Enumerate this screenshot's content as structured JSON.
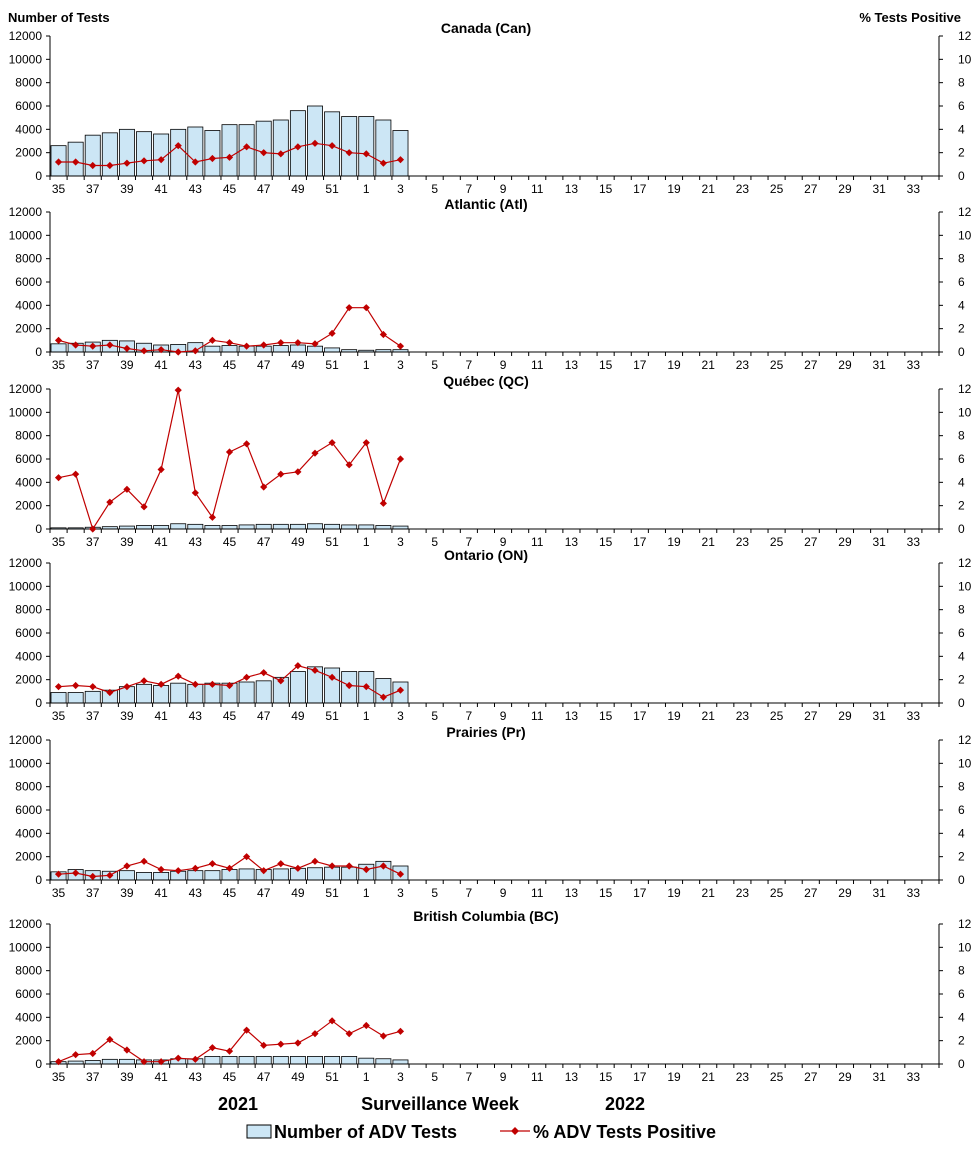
{
  "labels": {
    "left_axis_title": "Number of Tests",
    "right_axis_title": "%  Tests Positive",
    "year_left": "2021",
    "x_axis_title": "Surveillance Week",
    "year_right": "2022",
    "legend_bars": "Number of ADV Tests",
    "legend_line": "% ADV Tests Positive"
  },
  "colors": {
    "bar_fill": "#cce6f5",
    "bar_stroke": "#000000",
    "line": "#c00000",
    "marker": "#c00000"
  },
  "chart_data": [
    {
      "type": "bar",
      "title": "Canada (Can)",
      "week_ticks": [
        "35",
        "37",
        "39",
        "41",
        "43",
        "45",
        "47",
        "49",
        "51",
        "1",
        "3",
        "5",
        "7",
        "9",
        "11",
        "13",
        "15",
        "17",
        "19",
        "21",
        "23",
        "25",
        "27",
        "29",
        "31",
        "33"
      ],
      "weeks": [
        "35",
        "36",
        "37",
        "38",
        "39",
        "40",
        "41",
        "42",
        "43",
        "44",
        "45",
        "46",
        "47",
        "48",
        "49",
        "50",
        "51",
        "52",
        "1",
        "2",
        "3"
      ],
      "ylim_left": [
        0,
        12000
      ],
      "yticks_left": [
        0,
        2000,
        4000,
        6000,
        8000,
        10000,
        12000
      ],
      "ylim_right": [
        0,
        12
      ],
      "yticks_right": [
        0,
        2,
        4,
        6,
        8,
        10,
        12
      ],
      "series": [
        {
          "name": "Number of ADV Tests",
          "kind": "bar",
          "axis": "left",
          "values": [
            2600,
            2900,
            3500,
            3700,
            4000,
            3800,
            3600,
            4000,
            4200,
            3900,
            4400,
            4400,
            4700,
            4800,
            5600,
            6000,
            5500,
            5100,
            5100,
            4800,
            3900
          ]
        },
        {
          "name": "% ADV Tests Positive",
          "kind": "line",
          "axis": "right",
          "values": [
            1.2,
            1.2,
            0.9,
            0.9,
            1.1,
            1.3,
            1.4,
            2.6,
            1.2,
            1.5,
            1.6,
            2.5,
            2.0,
            1.9,
            2.5,
            2.8,
            2.6,
            2.0,
            1.9,
            1.1,
            1.4
          ]
        }
      ]
    },
    {
      "type": "bar",
      "title": "Atlantic (Atl)",
      "week_ticks": [
        "35",
        "37",
        "39",
        "41",
        "43",
        "45",
        "47",
        "49",
        "51",
        "1",
        "3",
        "5",
        "7",
        "9",
        "11",
        "13",
        "15",
        "17",
        "19",
        "21",
        "23",
        "25",
        "27",
        "29",
        "31",
        "33"
      ],
      "weeks": [
        "35",
        "36",
        "37",
        "38",
        "39",
        "40",
        "41",
        "42",
        "43",
        "44",
        "45",
        "46",
        "47",
        "48",
        "49",
        "50",
        "51",
        "52",
        "1",
        "2",
        "3"
      ],
      "ylim_left": [
        0,
        12000
      ],
      "yticks_left": [
        0,
        2000,
        4000,
        6000,
        8000,
        10000,
        12000
      ],
      "ylim_right": [
        0,
        12
      ],
      "yticks_right": [
        0,
        2,
        4,
        6,
        8,
        10,
        12
      ],
      "series": [
        {
          "name": "Number of ADV Tests",
          "kind": "bar",
          "axis": "left",
          "values": [
            700,
            750,
            850,
            1000,
            950,
            750,
            600,
            650,
            800,
            500,
            550,
            500,
            500,
            550,
            600,
            500,
            350,
            200,
            150,
            200,
            200
          ]
        },
        {
          "name": "% ADV Tests Positive",
          "kind": "line",
          "axis": "right",
          "values": [
            1.0,
            0.6,
            0.5,
            0.6,
            0.3,
            0.1,
            0.2,
            0.0,
            0.1,
            1.0,
            0.8,
            0.5,
            0.6,
            0.8,
            0.8,
            0.7,
            1.6,
            3.8,
            3.8,
            1.5,
            0.5
          ]
        }
      ]
    },
    {
      "type": "bar",
      "title": "Québec (QC)",
      "week_ticks": [
        "35",
        "37",
        "39",
        "41",
        "43",
        "45",
        "47",
        "49",
        "51",
        "1",
        "3",
        "5",
        "7",
        "9",
        "11",
        "13",
        "15",
        "17",
        "19",
        "21",
        "23",
        "25",
        "27",
        "29",
        "31",
        "33"
      ],
      "weeks": [
        "35",
        "36",
        "37",
        "38",
        "39",
        "40",
        "41",
        "42",
        "43",
        "44",
        "45",
        "46",
        "47",
        "48",
        "49",
        "50",
        "51",
        "52",
        "1",
        "2",
        "3"
      ],
      "ylim_left": [
        0,
        12000
      ],
      "yticks_left": [
        0,
        2000,
        4000,
        6000,
        8000,
        10000,
        12000
      ],
      "ylim_right": [
        0,
        12
      ],
      "yticks_right": [
        0,
        2,
        4,
        6,
        8,
        10,
        12
      ],
      "series": [
        {
          "name": "Number of ADV Tests",
          "kind": "bar",
          "axis": "left",
          "values": [
            100,
            100,
            150,
            200,
            250,
            300,
            300,
            450,
            400,
            300,
            300,
            350,
            400,
            400,
            400,
            450,
            400,
            350,
            350,
            300,
            250
          ]
        },
        {
          "name": "% ADV Tests Positive",
          "kind": "line",
          "axis": "right",
          "values": [
            4.4,
            4.7,
            0.0,
            2.3,
            3.4,
            1.9,
            5.1,
            11.9,
            3.1,
            1.0,
            6.6,
            7.3,
            3.6,
            4.7,
            4.9,
            6.5,
            7.4,
            5.5,
            7.4,
            2.2,
            6.0
          ]
        }
      ]
    },
    {
      "type": "bar",
      "title": "Ontario (ON)",
      "week_ticks": [
        "35",
        "37",
        "39",
        "41",
        "43",
        "45",
        "47",
        "49",
        "51",
        "1",
        "3",
        "5",
        "7",
        "9",
        "11",
        "13",
        "15",
        "17",
        "19",
        "21",
        "23",
        "25",
        "27",
        "29",
        "31",
        "33"
      ],
      "weeks": [
        "35",
        "36",
        "37",
        "38",
        "39",
        "40",
        "41",
        "42",
        "43",
        "44",
        "45",
        "46",
        "47",
        "48",
        "49",
        "50",
        "51",
        "52",
        "1",
        "2",
        "3"
      ],
      "ylim_left": [
        0,
        12000
      ],
      "yticks_left": [
        0,
        2000,
        4000,
        6000,
        8000,
        10000,
        12000
      ],
      "ylim_right": [
        0,
        12
      ],
      "yticks_right": [
        0,
        2,
        4,
        6,
        8,
        10,
        12
      ],
      "series": [
        {
          "name": "Number of ADV Tests",
          "kind": "bar",
          "axis": "left",
          "values": [
            900,
            900,
            1000,
            1100,
            1400,
            1600,
            1500,
            1700,
            1600,
            1700,
            1700,
            1800,
            1900,
            2200,
            2700,
            3100,
            3000,
            2700,
            2700,
            2100,
            1800
          ]
        },
        {
          "name": "% ADV Tests Positive",
          "kind": "line",
          "axis": "right",
          "values": [
            1.4,
            1.5,
            1.4,
            0.9,
            1.4,
            1.9,
            1.6,
            2.3,
            1.6,
            1.6,
            1.5,
            2.2,
            2.6,
            1.9,
            3.2,
            2.8,
            2.2,
            1.5,
            1.4,
            0.5,
            1.1
          ]
        }
      ]
    },
    {
      "type": "bar",
      "title": "Prairies (Pr)",
      "week_ticks": [
        "35",
        "37",
        "39",
        "41",
        "43",
        "45",
        "47",
        "49",
        "51",
        "1",
        "3",
        "5",
        "7",
        "9",
        "11",
        "13",
        "15",
        "17",
        "19",
        "21",
        "23",
        "25",
        "27",
        "29",
        "31",
        "33"
      ],
      "weeks": [
        "35",
        "36",
        "37",
        "38",
        "39",
        "40",
        "41",
        "42",
        "43",
        "44",
        "45",
        "46",
        "47",
        "48",
        "49",
        "50",
        "51",
        "52",
        "1",
        "2",
        "3"
      ],
      "ylim_left": [
        0,
        12000
      ],
      "yticks_left": [
        0,
        2000,
        4000,
        6000,
        8000,
        10000,
        12000
      ],
      "ylim_right": [
        0,
        12
      ],
      "yticks_right": [
        0,
        2,
        4,
        6,
        8,
        10,
        12
      ],
      "series": [
        {
          "name": "Number of ADV Tests",
          "kind": "bar",
          "axis": "left",
          "values": [
            700,
            900,
            800,
            750,
            800,
            650,
            650,
            750,
            800,
            800,
            900,
            950,
            900,
            950,
            1000,
            1050,
            1100,
            1100,
            1350,
            1600,
            1200
          ]
        },
        {
          "name": "% ADV Tests Positive",
          "kind": "line",
          "axis": "right",
          "values": [
            0.5,
            0.6,
            0.3,
            0.4,
            1.2,
            1.6,
            0.9,
            0.8,
            1.0,
            1.4,
            1.0,
            2.0,
            0.8,
            1.4,
            1.0,
            1.6,
            1.2,
            1.2,
            0.9,
            1.2,
            0.5
          ]
        }
      ]
    },
    {
      "type": "bar",
      "title": "British Columbia (BC)",
      "week_ticks": [
        "35",
        "37",
        "39",
        "41",
        "43",
        "45",
        "47",
        "49",
        "51",
        "1",
        "3",
        "5",
        "7",
        "9",
        "11",
        "13",
        "15",
        "17",
        "19",
        "21",
        "23",
        "25",
        "27",
        "29",
        "31",
        "33"
      ],
      "weeks": [
        "35",
        "36",
        "37",
        "38",
        "39",
        "40",
        "41",
        "42",
        "43",
        "44",
        "45",
        "46",
        "47",
        "48",
        "49",
        "50",
        "51",
        "52",
        "1",
        "2",
        "3"
      ],
      "ylim_left": [
        0,
        12000
      ],
      "yticks_left": [
        0,
        2000,
        4000,
        6000,
        8000,
        10000,
        12000
      ],
      "ylim_right": [
        0,
        12
      ],
      "yticks_right": [
        0,
        2,
        4,
        6,
        8,
        10,
        12
      ],
      "series": [
        {
          "name": "Number of ADV Tests",
          "kind": "bar",
          "axis": "left",
          "values": [
            200,
            250,
            300,
            400,
            400,
            350,
            350,
            450,
            450,
            650,
            650,
            650,
            650,
            650,
            650,
            650,
            650,
            650,
            500,
            450,
            350
          ]
        },
        {
          "name": "% ADV Tests Positive",
          "kind": "line",
          "axis": "right",
          "values": [
            0.2,
            0.8,
            0.9,
            2.1,
            1.2,
            0.2,
            0.2,
            0.5,
            0.4,
            1.4,
            1.1,
            2.9,
            1.6,
            1.7,
            1.8,
            2.6,
            3.7,
            2.6,
            3.3,
            2.4,
            2.8
          ]
        }
      ]
    }
  ]
}
